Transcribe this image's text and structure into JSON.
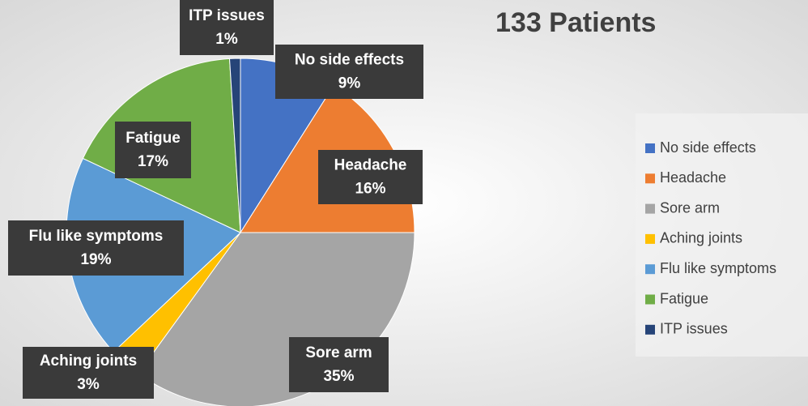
{
  "chart_data": {
    "type": "pie",
    "title": "133 Patients",
    "categories": [
      "No side effects",
      "Headache",
      "Sore arm",
      "Aching joints",
      "Flu like symptoms",
      "Fatigue",
      "ITP issues"
    ],
    "values": [
      9,
      16,
      35,
      3,
      19,
      17,
      1
    ],
    "value_labels": [
      "9%",
      "16%",
      "35%",
      "3%",
      "19%",
      "17%",
      "1%"
    ],
    "colors": [
      "#4472c4",
      "#ed7d31",
      "#a5a5a5",
      "#ffc000",
      "#5b9bd5",
      "#70ad47",
      "#264478"
    ],
    "legend": "right"
  }
}
